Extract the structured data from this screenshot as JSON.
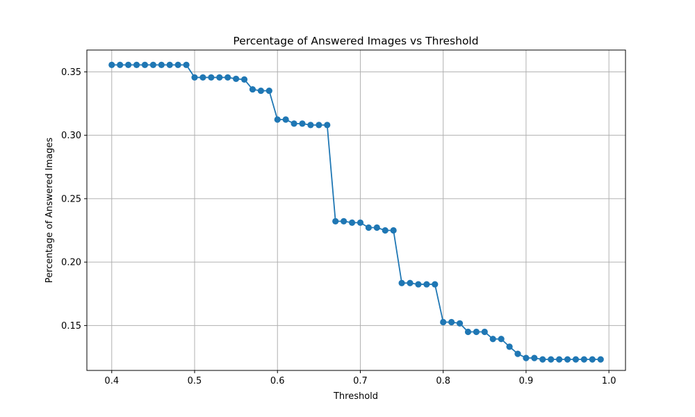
{
  "chart_data": {
    "type": "line",
    "title": "Percentage of Answered Images vs Threshold",
    "xlabel": "Threshold",
    "ylabel": "Percentage of Answered Images",
    "xlim": [
      0.37,
      1.02
    ],
    "ylim": [
      0.1146,
      0.3672
    ],
    "xticks": [
      "0.4",
      "0.5",
      "0.6",
      "0.7",
      "0.8",
      "0.9",
      "1.0"
    ],
    "yticks": [
      "0.15",
      "0.20",
      "0.25",
      "0.30",
      "0.35"
    ],
    "grid": true,
    "color": "#1f77b4",
    "x": [
      0.4,
      0.41,
      0.42,
      0.43,
      0.44,
      0.45,
      0.46,
      0.47,
      0.48,
      0.49,
      0.5,
      0.51,
      0.52,
      0.53,
      0.54,
      0.55,
      0.56,
      0.57,
      0.58,
      0.59,
      0.6,
      0.61,
      0.62,
      0.63,
      0.64,
      0.65,
      0.66,
      0.67,
      0.68,
      0.69,
      0.7,
      0.71,
      0.72,
      0.73,
      0.74,
      0.75,
      0.76,
      0.77,
      0.78,
      0.79,
      0.8,
      0.81,
      0.82,
      0.83,
      0.84,
      0.85,
      0.86,
      0.87,
      0.88,
      0.89,
      0.9,
      0.91,
      0.92,
      0.93,
      0.94,
      0.95,
      0.96,
      0.97,
      0.98,
      0.99
    ],
    "y": [
      0.3555,
      0.3555,
      0.3555,
      0.3555,
      0.3555,
      0.3555,
      0.3555,
      0.3555,
      0.3555,
      0.3555,
      0.3456,
      0.3456,
      0.3456,
      0.3456,
      0.3456,
      0.3445,
      0.344,
      0.3362,
      0.3351,
      0.3351,
      0.3124,
      0.3124,
      0.3092,
      0.3092,
      0.3081,
      0.3081,
      0.3081,
      0.2322,
      0.2322,
      0.2311,
      0.2311,
      0.2272,
      0.2272,
      0.225,
      0.225,
      0.1835,
      0.1835,
      0.1825,
      0.1825,
      0.1825,
      0.1527,
      0.1527,
      0.1517,
      0.145,
      0.145,
      0.145,
      0.1394,
      0.1394,
      0.1333,
      0.1277,
      0.1244,
      0.1244,
      0.1233,
      0.1233,
      0.1233,
      0.1233,
      0.1233,
      0.1233,
      0.1233,
      0.1233
    ]
  }
}
